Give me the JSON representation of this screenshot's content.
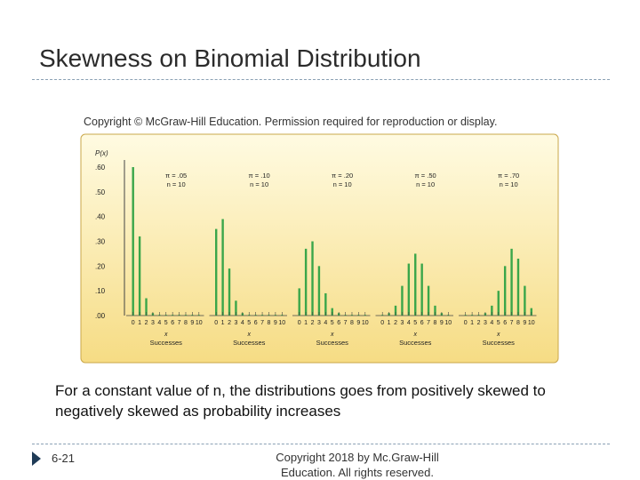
{
  "slide": {
    "title": "Skewness on Binomial Distribution",
    "figure_copyright": "Copyright © McGraw-Hill Education. Permission required for reproduction or display.",
    "caption": "For a constant value of n, the distributions goes from positively skewed to negatively skewed as probability increases",
    "slide_number": "6-21",
    "footer_copyright": "Copyright 2018 by Mc.Graw-Hill Education. All rights reserved."
  },
  "colors": {
    "bar": "#3aa64a",
    "panel_top": "#fffbe2",
    "panel_bottom": "#f6dc84",
    "panel_border": "#caa74a",
    "axis": "#444444",
    "text": "#222222"
  },
  "chart_data": {
    "type": "bar",
    "ylabel": "P(x)",
    "yticks": [
      ".00",
      ".10",
      ".20",
      ".30",
      ".40",
      ".50",
      ".60"
    ],
    "ylim": [
      0,
      0.6
    ],
    "x": [
      0,
      1,
      2,
      3,
      4,
      5,
      6,
      7,
      8,
      9,
      10
    ],
    "xtick_labels": [
      "0",
      "1",
      "2",
      "3",
      "4",
      "5",
      "6",
      "7",
      "8",
      "9",
      "10"
    ],
    "xlabel_line1": "x",
    "xlabel_line2": "Successes",
    "grid": false,
    "panels": [
      {
        "pi_label": "π = .05",
        "n_label": "n = 10",
        "values": [
          0.6,
          0.32,
          0.07,
          0.01,
          0,
          0,
          0,
          0,
          0,
          0,
          0
        ]
      },
      {
        "pi_label": "π = .10",
        "n_label": "n = 10",
        "values": [
          0.35,
          0.39,
          0.19,
          0.06,
          0.01,
          0,
          0,
          0,
          0,
          0,
          0
        ]
      },
      {
        "pi_label": "π = .20",
        "n_label": "n = 10",
        "values": [
          0.11,
          0.27,
          0.3,
          0.2,
          0.09,
          0.03,
          0.01,
          0,
          0,
          0,
          0
        ]
      },
      {
        "pi_label": "π = .50",
        "n_label": "n = 10",
        "values": [
          0.001,
          0.01,
          0.04,
          0.12,
          0.21,
          0.25,
          0.21,
          0.12,
          0.04,
          0.01,
          0.001
        ]
      },
      {
        "pi_label": "π = .70",
        "n_label": "n = 10",
        "values": [
          0,
          0,
          0.001,
          0.01,
          0.04,
          0.1,
          0.2,
          0.27,
          0.23,
          0.12,
          0.03
        ]
      }
    ]
  }
}
